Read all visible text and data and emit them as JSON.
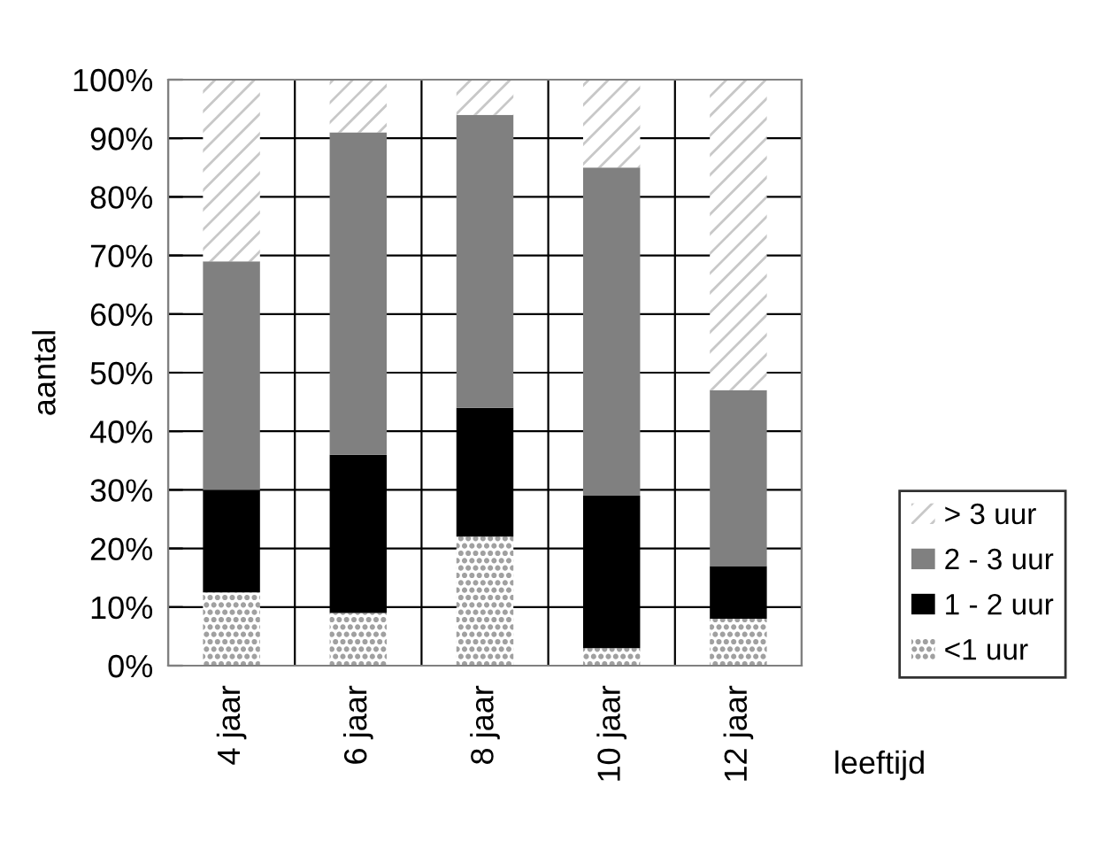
{
  "chart_data": {
    "type": "bar",
    "stacked": true,
    "xlabel": "leeftijd",
    "ylabel": "aantal",
    "categories": [
      "4 jaar",
      "6 jaar",
      "8 jaar",
      "10 jaar",
      "12 jaar"
    ],
    "series": [
      {
        "name": "<1 uur",
        "color": "#a0a0a0",
        "values": [
          12.5,
          9,
          22,
          3,
          8
        ]
      },
      {
        "name": "1 - 2 uur",
        "color": "#000000",
        "values": [
          17.5,
          27,
          22,
          26,
          9
        ]
      },
      {
        "name": "2 - 3 uur",
        "color": "#808080",
        "values": [
          39,
          55,
          50,
          56,
          30
        ]
      },
      {
        "name": "> 3 uur",
        "color": "#c8c8c8",
        "values": [
          31,
          9,
          6,
          15,
          53
        ]
      }
    ],
    "ylim": [
      0,
      100
    ],
    "yticks": [
      {
        "value": 0,
        "label": "0%"
      },
      {
        "value": 10,
        "label": "10%"
      },
      {
        "value": 20,
        "label": "20%"
      },
      {
        "value": 30,
        "label": "30%"
      },
      {
        "value": 40,
        "label": "40%"
      },
      {
        "value": 50,
        "label": "50%"
      },
      {
        "value": 60,
        "label": "60%"
      },
      {
        "value": 70,
        "label": "70%"
      },
      {
        "value": 80,
        "label": "80%"
      },
      {
        "value": 90,
        "label": "90%"
      },
      {
        "value": 100,
        "label": "100%"
      }
    ],
    "grid": true,
    "legend": "right"
  }
}
